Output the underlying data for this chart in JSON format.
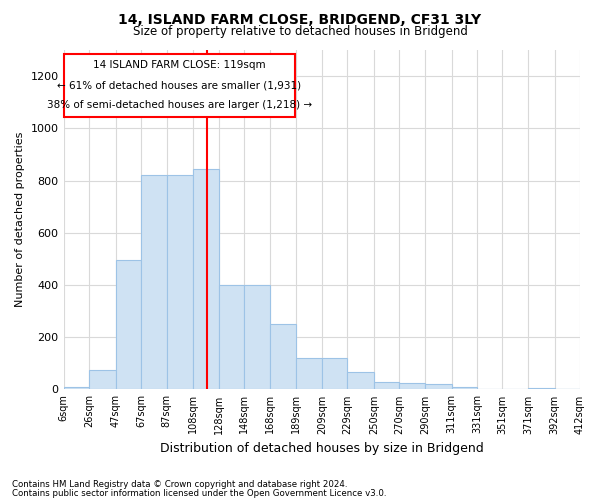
{
  "title": "14, ISLAND FARM CLOSE, BRIDGEND, CF31 3LY",
  "subtitle": "Size of property relative to detached houses in Bridgend",
  "xlabel": "Distribution of detached houses by size in Bridgend",
  "ylabel": "Number of detached properties",
  "footer_line1": "Contains HM Land Registry data © Crown copyright and database right 2024.",
  "footer_line2": "Contains public sector information licensed under the Open Government Licence v3.0.",
  "annotation_line1": "14 ISLAND FARM CLOSE: 119sqm",
  "annotation_line2": "← 61% of detached houses are smaller (1,931)",
  "annotation_line3": "38% of semi-detached houses are larger (1,218) →",
  "property_size": 119,
  "bar_color": "#cfe2f3",
  "bar_edge_color": "#9dc3e6",
  "vline_color": "red",
  "background_color": "#ffffff",
  "grid_color": "#d9d9d9",
  "bins": [
    6,
    26,
    47,
    67,
    87,
    108,
    128,
    148,
    168,
    189,
    209,
    229,
    250,
    270,
    290,
    311,
    331,
    351,
    371,
    392,
    412
  ],
  "bin_labels": [
    "6sqm",
    "26sqm",
    "47sqm",
    "67sqm",
    "87sqm",
    "108sqm",
    "128sqm",
    "148sqm",
    "168sqm",
    "189sqm",
    "209sqm",
    "229sqm",
    "250sqm",
    "270sqm",
    "290sqm",
    "311sqm",
    "331sqm",
    "351sqm",
    "371sqm",
    "392sqm",
    "412sqm"
  ],
  "counts": [
    10,
    75,
    495,
    820,
    820,
    845,
    400,
    400,
    250,
    120,
    120,
    65,
    30,
    25,
    20,
    10,
    0,
    0,
    5,
    0,
    0
  ],
  "ylim": [
    0,
    1300
  ],
  "yticks": [
    0,
    200,
    400,
    600,
    800,
    1000,
    1200
  ]
}
